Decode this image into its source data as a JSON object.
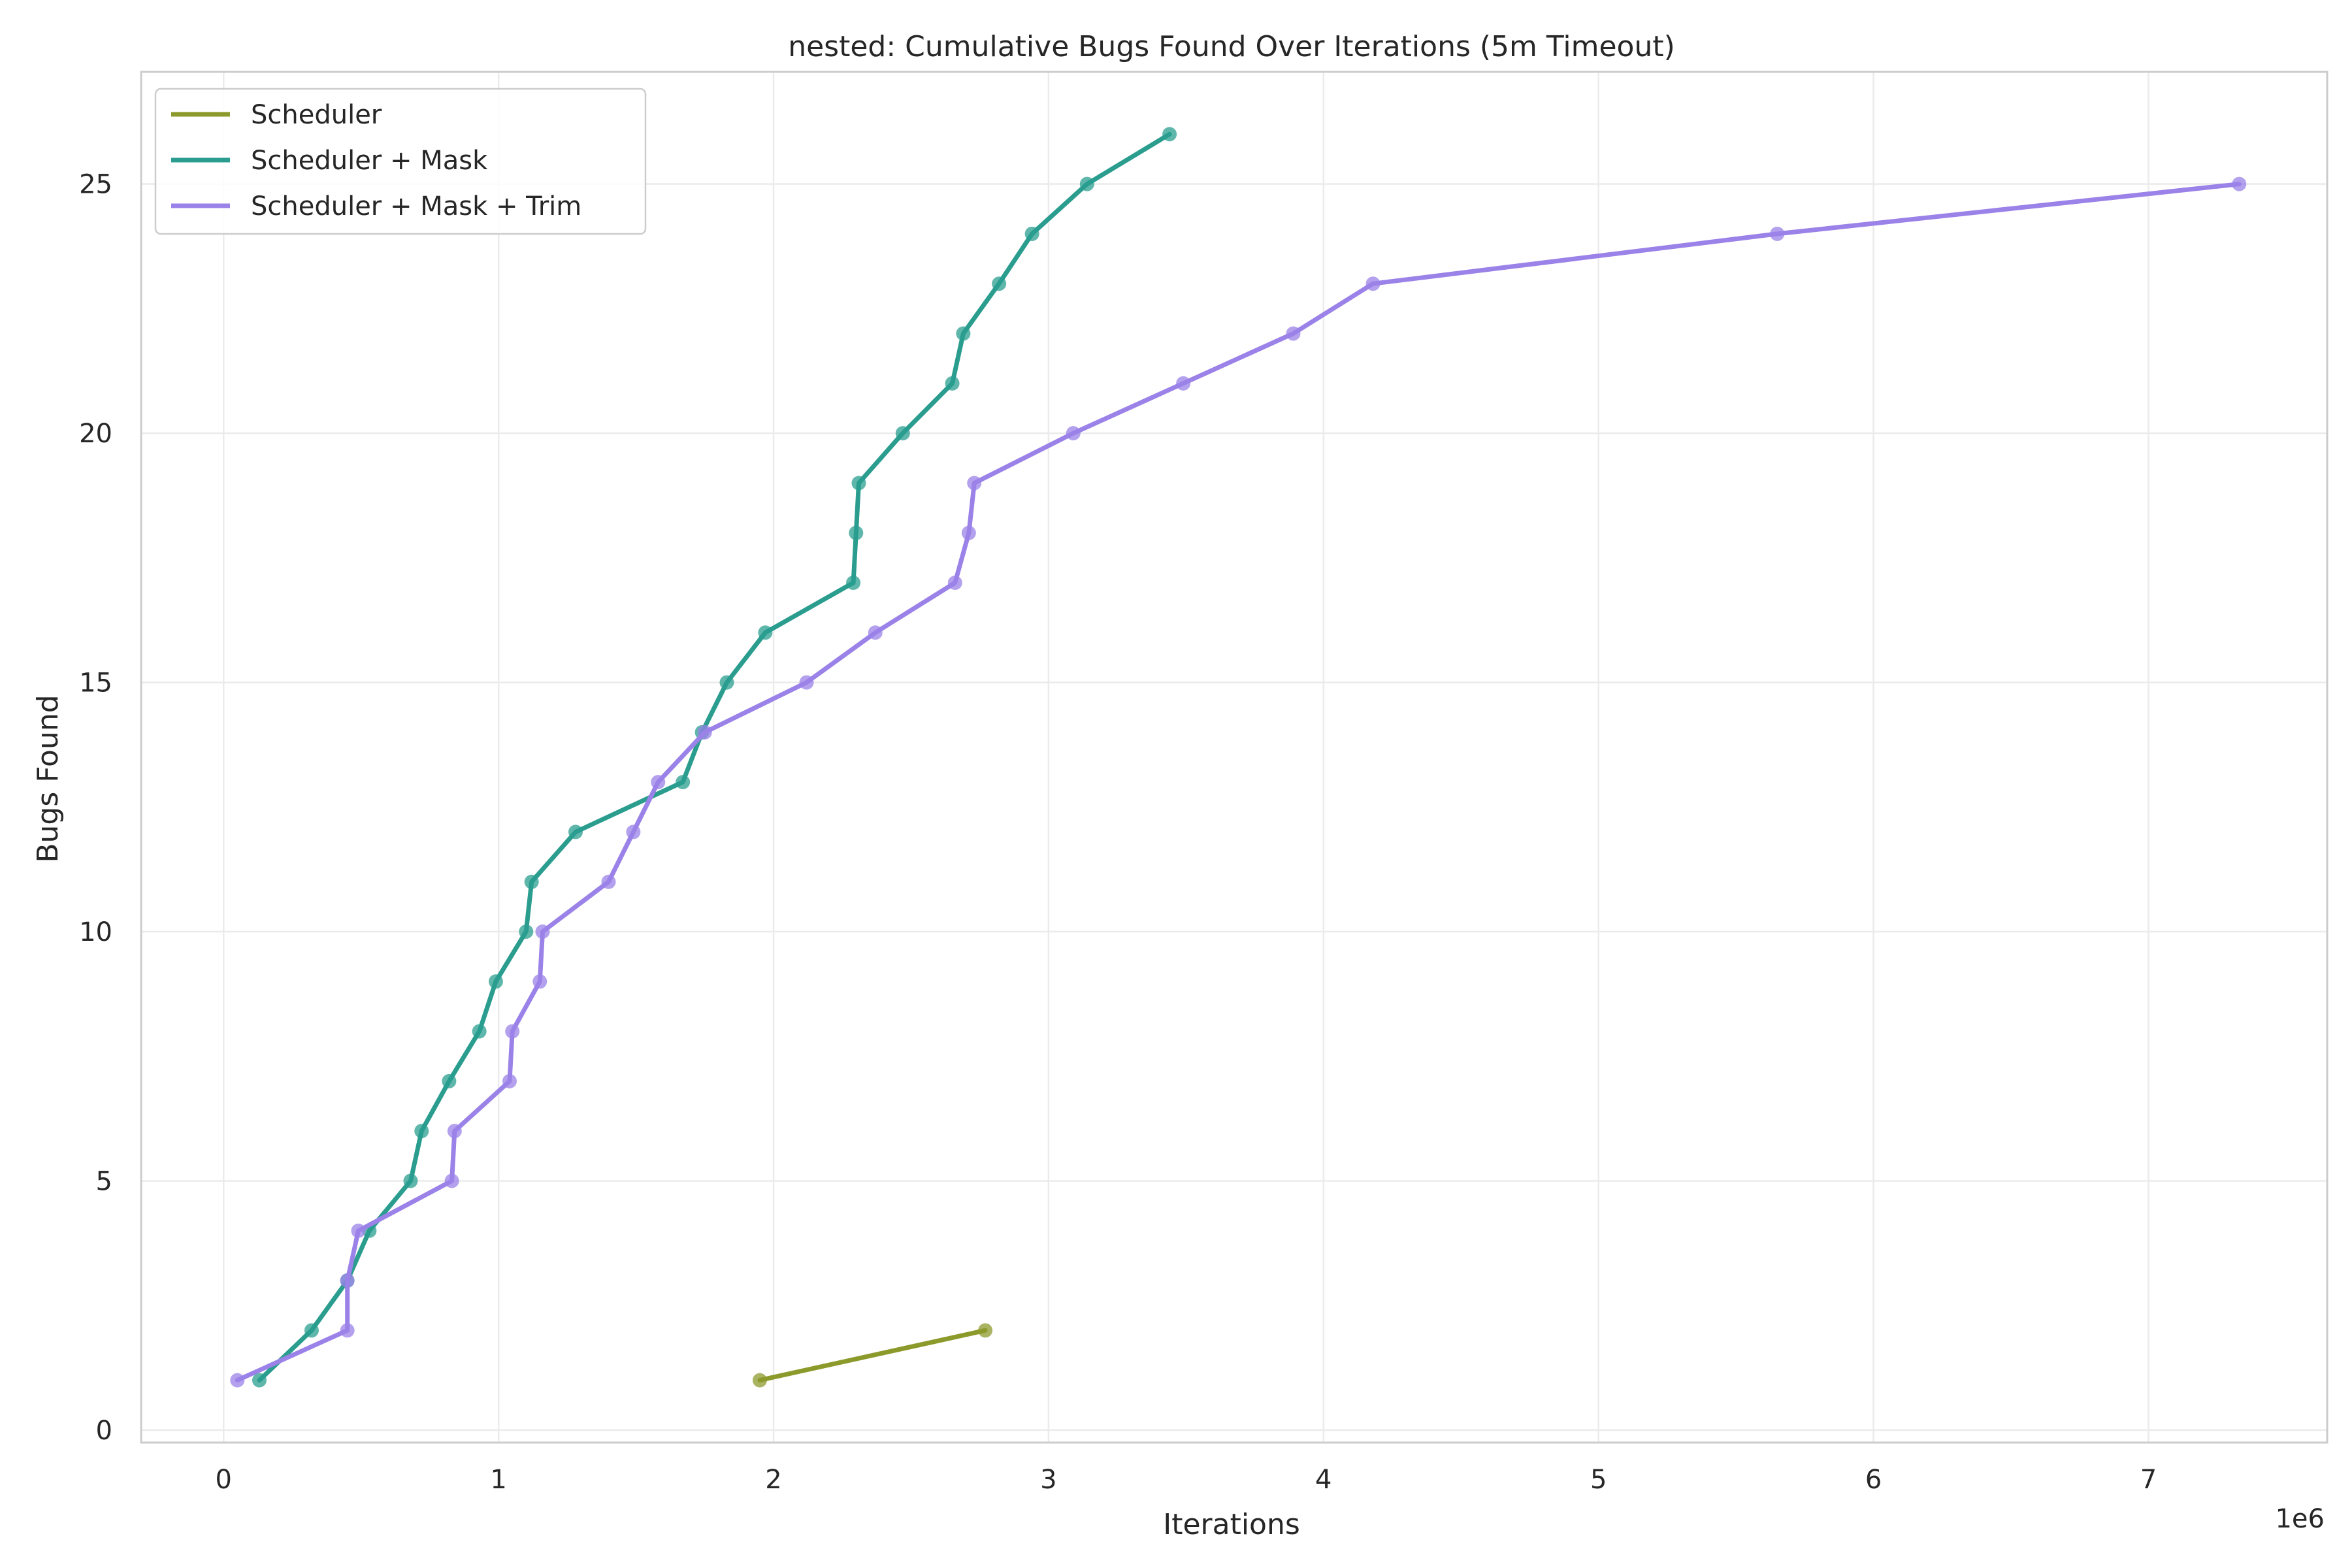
{
  "chart_data": {
    "type": "line",
    "title": "nested: Cumulative Bugs Found Over Iterations (5m Timeout)",
    "xlabel": "Iterations",
    "ylabel": "Bugs Found",
    "x_offset_label": "1e6",
    "xlim": [
      -300000,
      7650000
    ],
    "ylim": [
      -0.25,
      27.25
    ],
    "xticks": [
      0,
      1,
      2,
      3,
      4,
      5,
      6,
      7
    ],
    "xtick_labels": [
      "0",
      "1",
      "2",
      "3",
      "4",
      "5",
      "6",
      "7"
    ],
    "yticks": [
      0,
      5,
      10,
      15,
      20,
      25
    ],
    "ytick_labels": [
      "0",
      "5",
      "10",
      "15",
      "20",
      "25"
    ],
    "grid": true,
    "legend_position": "top-left",
    "series": [
      {
        "name": "Scheduler",
        "color": "#8c9a2c",
        "x": [
          1950000,
          2770000
        ],
        "y": [
          1,
          2
        ]
      },
      {
        "name": "Scheduler + Mask",
        "color": "#2a9d8f",
        "x": [
          130000,
          320000,
          450000,
          530000,
          680000,
          720000,
          820000,
          930000,
          990000,
          1100000,
          1120000,
          1280000,
          1670000,
          1740000,
          1830000,
          1970000,
          2290000,
          2300000,
          2310000,
          2470000,
          2650000,
          2690000,
          2820000,
          2940000,
          3140000,
          3440000
        ],
        "y": [
          1,
          2,
          3,
          4,
          5,
          6,
          7,
          8,
          9,
          10,
          11,
          12,
          13,
          14,
          15,
          16,
          17,
          18,
          19,
          20,
          21,
          22,
          23,
          24,
          25,
          26
        ]
      },
      {
        "name": "Scheduler + Mask + Trim",
        "color": "#9b82e8",
        "x": [
          50000,
          450000,
          450000,
          490000,
          830000,
          840000,
          1040000,
          1050000,
          1150000,
          1160000,
          1400000,
          1490000,
          1580000,
          1750000,
          2120000,
          2370000,
          2660000,
          2710000,
          2730000,
          3090000,
          3490000,
          3890000,
          4180000,
          5650000,
          7330000
        ],
        "y": [
          1,
          2,
          3,
          4,
          5,
          6,
          7,
          8,
          9,
          10,
          11,
          12,
          13,
          14,
          15,
          16,
          17,
          18,
          19,
          20,
          21,
          22,
          23,
          24,
          25
        ]
      }
    ]
  }
}
